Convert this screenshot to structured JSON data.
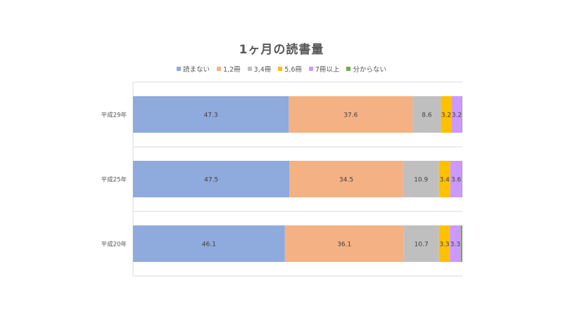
{
  "chart_data": {
    "type": "bar",
    "orientation": "horizontal",
    "stacked": true,
    "title": "1ヶ月の読書量",
    "xlabel": "",
    "ylabel": "",
    "xlim": [
      0,
      100
    ],
    "legend_position": "top",
    "grid": true,
    "categories": [
      "平成29年",
      "平成25年",
      "平成20年"
    ],
    "series": [
      {
        "name": "読まない",
        "color": "#8faadc",
        "values": [
          47.3,
          47.5,
          46.1
        ],
        "labels": [
          "47.3",
          "47.5",
          "46.1"
        ]
      },
      {
        "name": "1,2冊",
        "color": "#f4b183",
        "values": [
          37.6,
          34.5,
          36.1
        ],
        "labels": [
          "37.6",
          "34.5",
          "36.1"
        ]
      },
      {
        "name": "3,4冊",
        "color": "#bfbfbf",
        "values": [
          8.6,
          10.9,
          10.7
        ],
        "labels": [
          "8.6",
          "10.9",
          "10.7"
        ]
      },
      {
        "name": "5,6冊",
        "color": "#ffc000",
        "values": [
          3.2,
          3.4,
          3.3
        ],
        "labels": [
          "3.2",
          "3.4",
          "3.3"
        ]
      },
      {
        "name": "7冊以上",
        "color": "#cc99ff",
        "values": [
          3.2,
          3.6,
          3.3
        ],
        "labels": [
          "3.2",
          "3.6",
          "3.3"
        ]
      },
      {
        "name": "分からない",
        "color": "#70ad47",
        "values": [
          0.1,
          0.1,
          0.5
        ],
        "labels": [
          "",
          "",
          ""
        ]
      }
    ]
  }
}
